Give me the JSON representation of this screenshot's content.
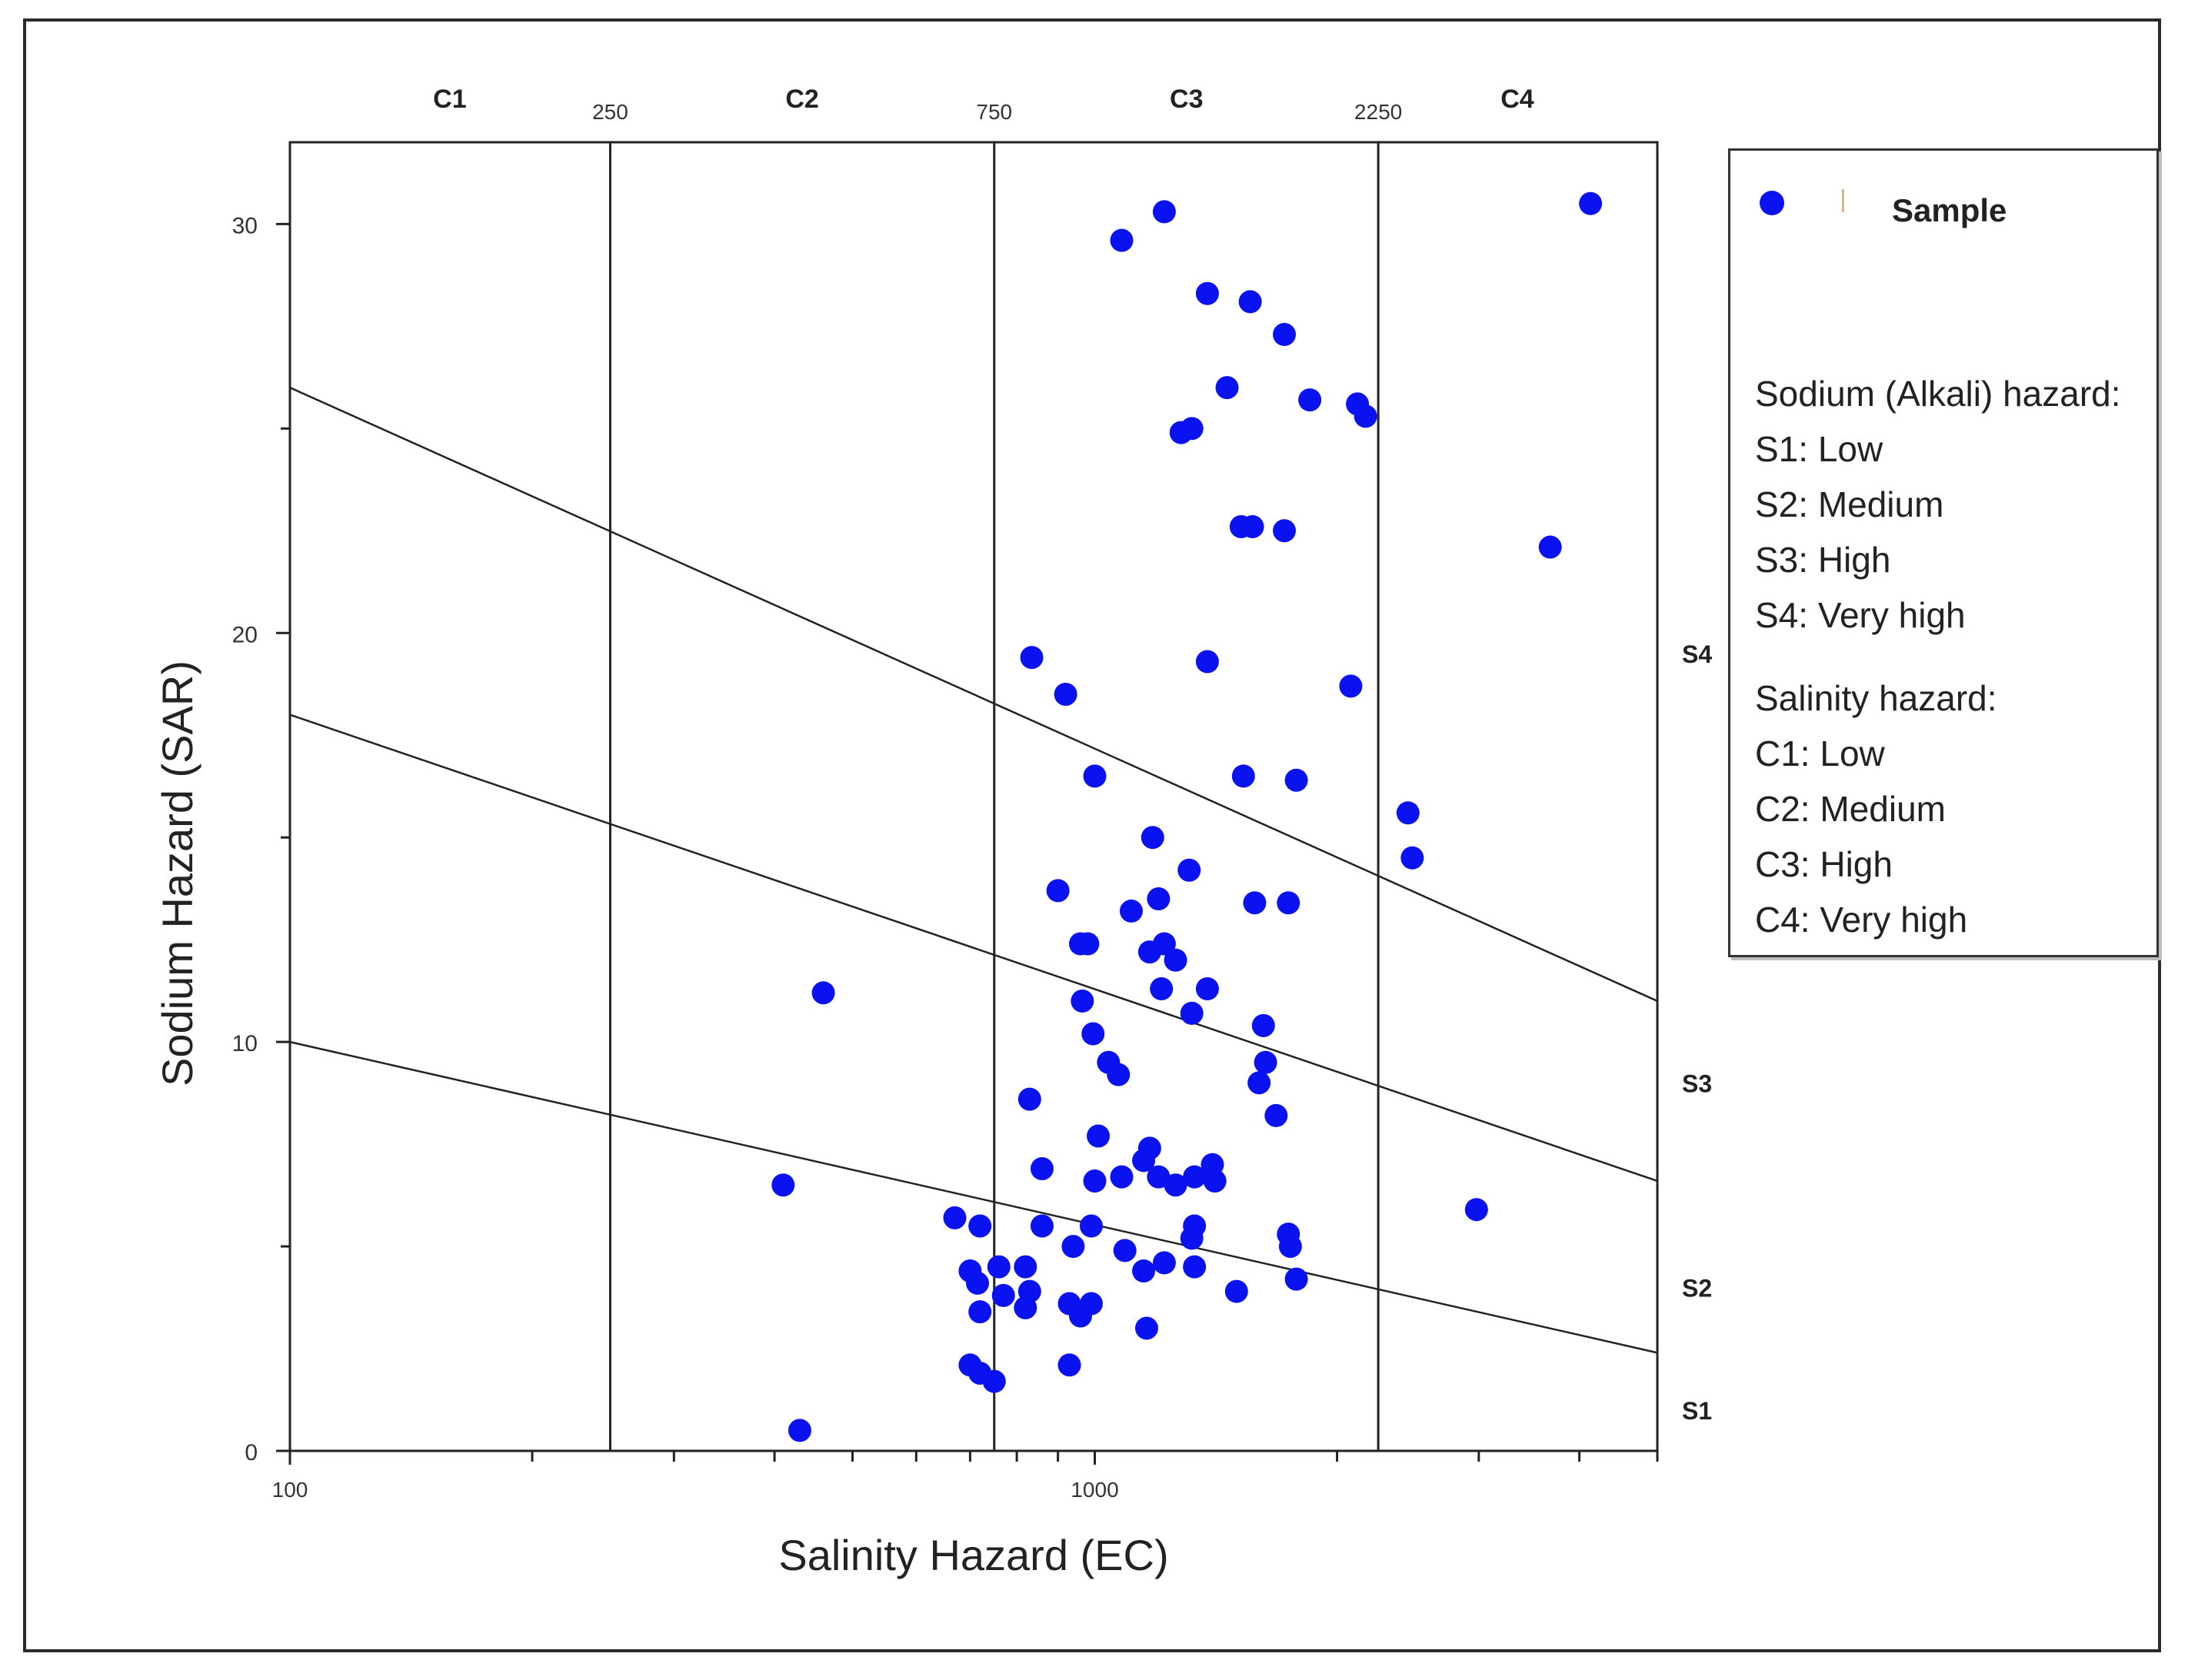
{
  "chart_data": {
    "type": "scatter",
    "title": "",
    "xlabel": "Salinity Hazard (EC)",
    "ylabel": "Sodium Hazard (SAR)",
    "xscale": "log",
    "xlim": [
      100,
      5000
    ],
    "ylim": [
      0,
      32
    ],
    "x_tick_labels": [
      {
        "value": 100,
        "label": "100"
      },
      {
        "value": 1000,
        "label": "1000"
      }
    ],
    "x_minor_ticks": [
      200,
      300,
      400,
      500,
      600,
      700,
      800,
      900,
      2000,
      3000,
      4000,
      5000
    ],
    "y_ticks": [
      0,
      10,
      20,
      30
    ],
    "y_tick_labels": [
      "0",
      "10",
      "20",
      "30"
    ],
    "y_minor_ticks": [
      5,
      15,
      25
    ],
    "salinity_boundaries": [
      {
        "value": 250,
        "label": "250"
      },
      {
        "value": 750,
        "label": "750"
      },
      {
        "value": 2250,
        "label": "2250"
      }
    ],
    "salinity_classes": [
      {
        "label": "C1",
        "center": 158
      },
      {
        "label": "C2",
        "center": 433
      },
      {
        "label": "C3",
        "center": 1300
      },
      {
        "label": "C4",
        "center": 3350
      }
    ],
    "sodium_lines": [
      {
        "name": "S1/S2",
        "from": [
          100,
          10
        ],
        "to": [
          5000,
          2.4
        ]
      },
      {
        "name": "S2/S3",
        "from": [
          100,
          18
        ],
        "to": [
          5000,
          6.6
        ]
      },
      {
        "name": "S3/S4",
        "from": [
          100,
          26
        ],
        "to": [
          5000,
          11
        ]
      }
    ],
    "sodium_classes": [
      {
        "label": "S1",
        "y": 1
      },
      {
        "label": "S2",
        "y": 4
      },
      {
        "label": "S3",
        "y": 9
      },
      {
        "label": "S4",
        "y": 19.5
      }
    ],
    "series": [
      {
        "name": "Sample",
        "color": "#0a12f0",
        "points": [
          [
            1080,
            29.6
          ],
          [
            1220,
            30.3
          ],
          [
            1380,
            28.3
          ],
          [
            1560,
            28.1
          ],
          [
            1720,
            27.3
          ],
          [
            1460,
            26.0
          ],
          [
            1850,
            25.7
          ],
          [
            2120,
            25.6
          ],
          [
            2170,
            25.3
          ],
          [
            1280,
            24.9
          ],
          [
            1320,
            25.0
          ],
          [
            1520,
            22.6
          ],
          [
            1570,
            22.6
          ],
          [
            1720,
            22.5
          ],
          [
            4130,
            30.5
          ],
          [
            3680,
            22.1
          ],
          [
            835,
            19.4
          ],
          [
            920,
            18.5
          ],
          [
            1380,
            19.3
          ],
          [
            2080,
            18.7
          ],
          [
            1000,
            16.5
          ],
          [
            1530,
            16.5
          ],
          [
            1780,
            16.4
          ],
          [
            2450,
            15.6
          ],
          [
            2480,
            14.5
          ],
          [
            1180,
            15.0
          ],
          [
            1310,
            14.2
          ],
          [
            900,
            13.7
          ],
          [
            1110,
            13.2
          ],
          [
            1200,
            13.5
          ],
          [
            1580,
            13.4
          ],
          [
            1740,
            13.4
          ],
          [
            960,
            12.4
          ],
          [
            980,
            12.4
          ],
          [
            1170,
            12.2
          ],
          [
            1220,
            12.4
          ],
          [
            1260,
            12.0
          ],
          [
            1210,
            11.3
          ],
          [
            1380,
            11.3
          ],
          [
            1320,
            10.7
          ],
          [
            1620,
            10.4
          ],
          [
            965,
            11.0
          ],
          [
            995,
            10.2
          ],
          [
            1040,
            9.5
          ],
          [
            1070,
            9.2
          ],
          [
            1630,
            9.5
          ],
          [
            1600,
            9.0
          ],
          [
            1680,
            8.2
          ],
          [
            830,
            8.6
          ],
          [
            1010,
            7.7
          ],
          [
            1150,
            7.1
          ],
          [
            1170,
            7.4
          ],
          [
            1200,
            6.7
          ],
          [
            1260,
            6.5
          ],
          [
            1330,
            6.7
          ],
          [
            1400,
            7.0
          ],
          [
            1410,
            6.6
          ],
          [
            860,
            6.9
          ],
          [
            1000,
            6.6
          ],
          [
            1080,
            6.7
          ],
          [
            860,
            5.5
          ],
          [
            990,
            5.5
          ],
          [
            940,
            5.0
          ],
          [
            1090,
            4.9
          ],
          [
            1150,
            4.4
          ],
          [
            1220,
            4.6
          ],
          [
            1320,
            5.2
          ],
          [
            1330,
            5.5
          ],
          [
            1330,
            4.5
          ],
          [
            1740,
            5.3
          ],
          [
            1750,
            5.0
          ],
          [
            1780,
            4.2
          ],
          [
            2980,
            5.9
          ],
          [
            1500,
            3.9
          ],
          [
            670,
            5.7
          ],
          [
            700,
            4.4
          ],
          [
            715,
            4.1
          ],
          [
            720,
            5.5
          ],
          [
            760,
            4.5
          ],
          [
            820,
            4.5
          ],
          [
            830,
            3.9
          ],
          [
            770,
            3.8
          ],
          [
            820,
            3.5
          ],
          [
            930,
            3.6
          ],
          [
            960,
            3.3
          ],
          [
            990,
            3.6
          ],
          [
            720,
            3.4
          ],
          [
            700,
            2.1
          ],
          [
            720,
            1.9
          ],
          [
            750,
            1.7
          ],
          [
            930,
            2.1
          ],
          [
            1160,
            3.0
          ],
          [
            460,
            11.2
          ],
          [
            410,
            6.5
          ],
          [
            430,
            0.5
          ]
        ]
      }
    ],
    "legend": {
      "position": "right",
      "sample_label": "Sample",
      "sodium_title": "Sodium (Alkali) hazard:",
      "sodium_items": [
        "S1: Low",
        "S2: Medium",
        "S3: High",
        "S4: Very high"
      ],
      "salinity_title": "Salinity hazard:",
      "salinity_items": [
        "C1: Low",
        "C2: Medium",
        "C3: High",
        "C4: Very high"
      ]
    }
  }
}
